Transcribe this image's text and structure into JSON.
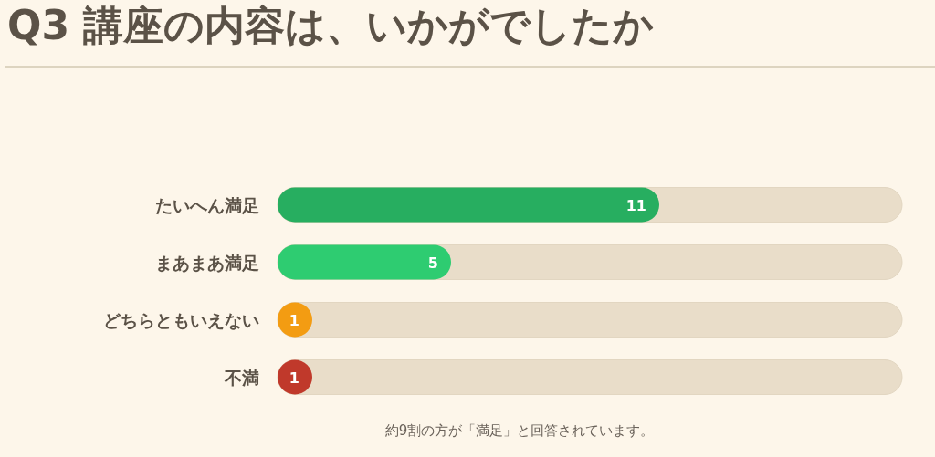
{
  "chart_data": {
    "type": "bar",
    "orientation": "horizontal",
    "title": "Q3 講座の内容は、いかがでしたか",
    "categories": [
      "たいへん満足",
      "まあまあ満足",
      "どちらともいえない",
      "不満"
    ],
    "values": [
      11,
      5,
      1,
      1
    ],
    "colors": [
      "#27ae60",
      "#2ecc71",
      "#f39c12",
      "#c0392b"
    ],
    "xlim": [
      0,
      18
    ],
    "data_labels": true,
    "tick_labels": "y",
    "annotations": [
      "約9割の方が「満足」と回答されています。"
    ]
  }
}
